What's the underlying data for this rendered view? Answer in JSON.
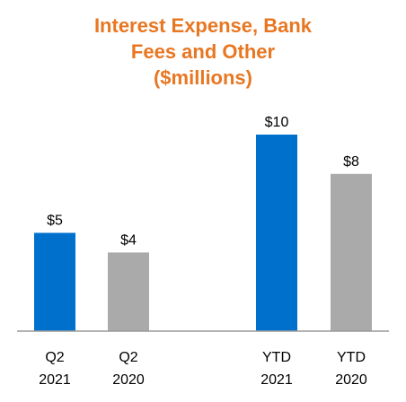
{
  "chart_data": {
    "type": "bar",
    "title_lines": [
      "Interest Expense, Bank",
      "Fees and Other",
      "($millions)"
    ],
    "categories": [
      {
        "line1": "Q2",
        "line2": "2021"
      },
      {
        "line1": "Q2",
        "line2": "2020"
      },
      {
        "line1": "YTD",
        "line2": "2021"
      },
      {
        "line1": "YTD",
        "line2": "2020"
      }
    ],
    "values": [
      5,
      4,
      10,
      8
    ],
    "data_labels": [
      "$5",
      "$4",
      "$10",
      "$8"
    ],
    "bar_colors": [
      "#0070CD",
      "#AAAAAA",
      "#0070CD",
      "#AAAAAA"
    ],
    "ylim": [
      0,
      10
    ],
    "grid": false,
    "legend": "none",
    "title_color": "#E87722"
  }
}
